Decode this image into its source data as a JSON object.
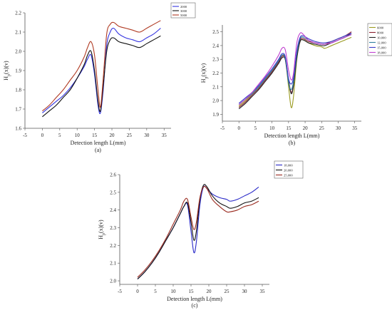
{
  "chart_data": [
    {
      "type": "line",
      "panel_label": "(a)",
      "xlabel": "Detection length L(mm)",
      "ylabel": "H_p(x)(v)",
      "xlim": [
        -5,
        37
      ],
      "ylim": [
        1.6,
        2.2
      ],
      "xticks": [
        -5,
        0,
        5,
        10,
        15,
        20,
        25,
        30,
        35
      ],
      "yticks": [
        1.6,
        1.7,
        1.8,
        1.9,
        2.0,
        2.1,
        2.2
      ],
      "ytick_labels": [
        "1.6",
        "1.7",
        "1.8",
        "1.9",
        "2.0",
        "2.1",
        "2.2"
      ],
      "legend_position": "top-right",
      "series": [
        {
          "name": "2000",
          "color": "#3535e0",
          "x": [
            0,
            2,
            4,
            6,
            8,
            10,
            12,
            13,
            14,
            15,
            16,
            16.7,
            17.5,
            18.5,
            19.5,
            20.5,
            22,
            24,
            26,
            28,
            30,
            32,
            34
          ],
          "y": [
            1.68,
            1.71,
            1.74,
            1.77,
            1.81,
            1.86,
            1.92,
            1.96,
            1.98,
            1.88,
            1.72,
            1.68,
            1.8,
            2.03,
            2.1,
            2.12,
            2.09,
            2.07,
            2.06,
            2.05,
            2.07,
            2.09,
            2.12
          ]
        },
        {
          "name": "3000",
          "color": "#111111",
          "x": [
            0,
            2,
            4,
            6,
            8,
            10,
            12,
            13,
            14,
            15,
            16,
            16.7,
            17.5,
            18.5,
            19.5,
            20.5,
            22,
            24,
            26,
            28,
            30,
            32,
            34
          ],
          "y": [
            1.66,
            1.69,
            1.72,
            1.76,
            1.8,
            1.86,
            1.93,
            1.98,
            2.0,
            1.9,
            1.74,
            1.69,
            1.82,
            2.0,
            2.06,
            2.07,
            2.05,
            2.04,
            2.03,
            2.02,
            2.04,
            2.06,
            2.08
          ]
        },
        {
          "name": "5000",
          "color": "#b03a22",
          "x": [
            0,
            2,
            4,
            6,
            8,
            10,
            12,
            13,
            14,
            15,
            16,
            16.7,
            17.5,
            18.5,
            19.5,
            20.5,
            22,
            24,
            26,
            28,
            30,
            32,
            34
          ],
          "y": [
            1.69,
            1.72,
            1.76,
            1.8,
            1.85,
            1.9,
            1.97,
            2.02,
            2.05,
            1.98,
            1.8,
            1.71,
            1.86,
            2.09,
            2.14,
            2.15,
            2.13,
            2.12,
            2.11,
            2.1,
            2.12,
            2.14,
            2.16
          ]
        }
      ]
    },
    {
      "type": "line",
      "panel_label": "(b)",
      "xlabel": "Detection length L(mm)",
      "ylabel": "H_p(x)(v)",
      "xlim": [
        -5,
        37
      ],
      "ylim": [
        1.85,
        2.55
      ],
      "xticks": [
        -5,
        0,
        5,
        10,
        15,
        20,
        25,
        30,
        35
      ],
      "yticks": [
        1.9,
        2.0,
        2.1,
        2.2,
        2.3,
        2.4,
        2.5
      ],
      "ytick_labels": [
        "1.9",
        "2.0",
        "2.1",
        "2.2",
        "2.3",
        "2.4",
        "2.5"
      ],
      "legend_position": "top-right",
      "series": [
        {
          "name": "6000",
          "color": "#9a9a20",
          "x": [
            0,
            2,
            4,
            6,
            8,
            10,
            12,
            13,
            14,
            15,
            15.8,
            16.5,
            17.5,
            18.5,
            19.5,
            21,
            23,
            25,
            26,
            28,
            30,
            32,
            34
          ],
          "y": [
            1.96,
            2.0,
            2.05,
            2.1,
            2.16,
            2.22,
            2.29,
            2.33,
            2.3,
            2.1,
            1.95,
            2.03,
            2.3,
            2.43,
            2.44,
            2.42,
            2.4,
            2.39,
            2.38,
            2.4,
            2.42,
            2.44,
            2.46
          ]
        },
        {
          "name": "8000",
          "color": "#8a2030",
          "x": [
            0,
            2,
            4,
            6,
            8,
            10,
            12,
            13,
            14,
            15,
            15.8,
            16.5,
            17.5,
            18.5,
            19.5,
            21,
            23,
            25,
            26,
            28,
            30,
            32,
            34
          ],
          "y": [
            1.95,
            1.99,
            2.04,
            2.09,
            2.15,
            2.21,
            2.28,
            2.32,
            2.31,
            2.15,
            2.06,
            2.12,
            2.33,
            2.44,
            2.45,
            2.43,
            2.42,
            2.41,
            2.41,
            2.43,
            2.45,
            2.47,
            2.5
          ]
        },
        {
          "name": "10,000",
          "color": "#222222",
          "x": [
            0,
            2,
            4,
            6,
            8,
            10,
            12,
            13,
            14,
            15,
            15.8,
            16.5,
            17.5,
            18.5,
            19.5,
            21,
            23,
            25,
            26,
            28,
            30,
            32,
            34
          ],
          "y": [
            1.94,
            1.98,
            2.03,
            2.08,
            2.14,
            2.2,
            2.27,
            2.31,
            2.3,
            2.14,
            2.05,
            2.11,
            2.31,
            2.43,
            2.44,
            2.42,
            2.41,
            2.4,
            2.4,
            2.42,
            2.44,
            2.46,
            2.49
          ]
        },
        {
          "name": "12,000",
          "color": "#2f7f9f",
          "x": [
            0,
            2,
            4,
            6,
            8,
            10,
            12,
            13,
            14,
            15,
            15.8,
            16.5,
            17.5,
            18.5,
            19.5,
            21,
            23,
            25,
            26,
            28,
            30,
            32,
            34
          ],
          "y": [
            1.97,
            2.01,
            2.05,
            2.1,
            2.16,
            2.22,
            2.29,
            2.33,
            2.31,
            2.13,
            2.08,
            2.14,
            2.34,
            2.45,
            2.46,
            2.44,
            2.42,
            2.41,
            2.41,
            2.42,
            2.44,
            2.46,
            2.48
          ]
        },
        {
          "name": "15,000",
          "color": "#3a3ac8",
          "x": [
            0,
            2,
            4,
            6,
            8,
            10,
            12,
            13,
            14,
            15,
            15.8,
            16.5,
            17.5,
            18.5,
            19.5,
            21,
            23,
            25,
            26,
            28,
            30,
            32,
            34
          ],
          "y": [
            1.98,
            2.02,
            2.06,
            2.11,
            2.17,
            2.23,
            2.3,
            2.34,
            2.32,
            2.16,
            2.12,
            2.17,
            2.36,
            2.46,
            2.47,
            2.45,
            2.43,
            2.42,
            2.42,
            2.43,
            2.45,
            2.47,
            2.49
          ]
        },
        {
          "name": "18,000",
          "color": "#c040d0",
          "x": [
            0,
            2,
            4,
            6,
            8,
            10,
            12,
            13,
            14,
            15,
            15.8,
            16.5,
            17.5,
            18.5,
            19.5,
            21,
            23,
            25,
            26,
            28,
            30,
            32,
            34
          ],
          "y": [
            1.97,
            2.01,
            2.06,
            2.12,
            2.18,
            2.25,
            2.33,
            2.38,
            2.37,
            2.22,
            2.15,
            2.2,
            2.42,
            2.49,
            2.48,
            2.44,
            2.42,
            2.41,
            2.41,
            2.42,
            2.44,
            2.46,
            2.48
          ]
        }
      ]
    },
    {
      "type": "line",
      "panel_label": "(c)",
      "xlabel": "Detection length L(mm)",
      "ylabel": "H_p(x)(v)",
      "xlim": [
        -5,
        37
      ],
      "ylim": [
        1.98,
        2.6
      ],
      "xticks": [
        -5,
        0,
        5,
        10,
        15,
        20,
        25,
        30,
        35
      ],
      "yticks": [
        2.0,
        2.1,
        2.2,
        2.3,
        2.4,
        2.5,
        2.6
      ],
      "ytick_labels": [
        "2.0",
        "2.1",
        "2.2",
        "2.3",
        "2.4",
        "2.5",
        "2.6"
      ],
      "legend_position": "top-right",
      "series": [
        {
          "name": "18,000",
          "color": "#2828c8",
          "x": [
            0,
            2,
            4,
            6,
            8,
            10,
            12,
            13,
            14,
            15,
            15.8,
            16.5,
            17.5,
            18.5,
            19.5,
            21,
            23,
            25,
            26,
            28,
            30,
            32,
            34
          ],
          "y": [
            2.01,
            2.05,
            2.1,
            2.16,
            2.23,
            2.3,
            2.38,
            2.42,
            2.43,
            2.28,
            2.16,
            2.22,
            2.43,
            2.53,
            2.52,
            2.49,
            2.47,
            2.46,
            2.45,
            2.46,
            2.48,
            2.5,
            2.53
          ]
        },
        {
          "name": "20,000",
          "color": "#111111",
          "x": [
            0,
            2,
            4,
            6,
            8,
            10,
            12,
            13,
            14,
            15,
            15.8,
            16.5,
            17.5,
            18.5,
            19.5,
            21,
            23,
            25,
            26,
            28,
            30,
            32,
            34
          ],
          "y": [
            2.01,
            2.05,
            2.1,
            2.16,
            2.23,
            2.3,
            2.38,
            2.42,
            2.44,
            2.33,
            2.23,
            2.28,
            2.46,
            2.54,
            2.53,
            2.48,
            2.44,
            2.42,
            2.41,
            2.42,
            2.44,
            2.45,
            2.47
          ]
        },
        {
          "name": "25,000",
          "color": "#9a2a1f",
          "x": [
            0,
            2,
            4,
            6,
            8,
            10,
            12,
            13,
            14,
            15,
            15.8,
            16.5,
            17.5,
            18.5,
            19.5,
            21,
            23,
            25,
            26,
            28,
            30,
            32,
            34
          ],
          "y": [
            2.02,
            2.06,
            2.11,
            2.17,
            2.24,
            2.32,
            2.4,
            2.45,
            2.46,
            2.36,
            2.29,
            2.33,
            2.47,
            2.53,
            2.52,
            2.46,
            2.42,
            2.39,
            2.39,
            2.4,
            2.42,
            2.43,
            2.45
          ]
        }
      ]
    }
  ]
}
